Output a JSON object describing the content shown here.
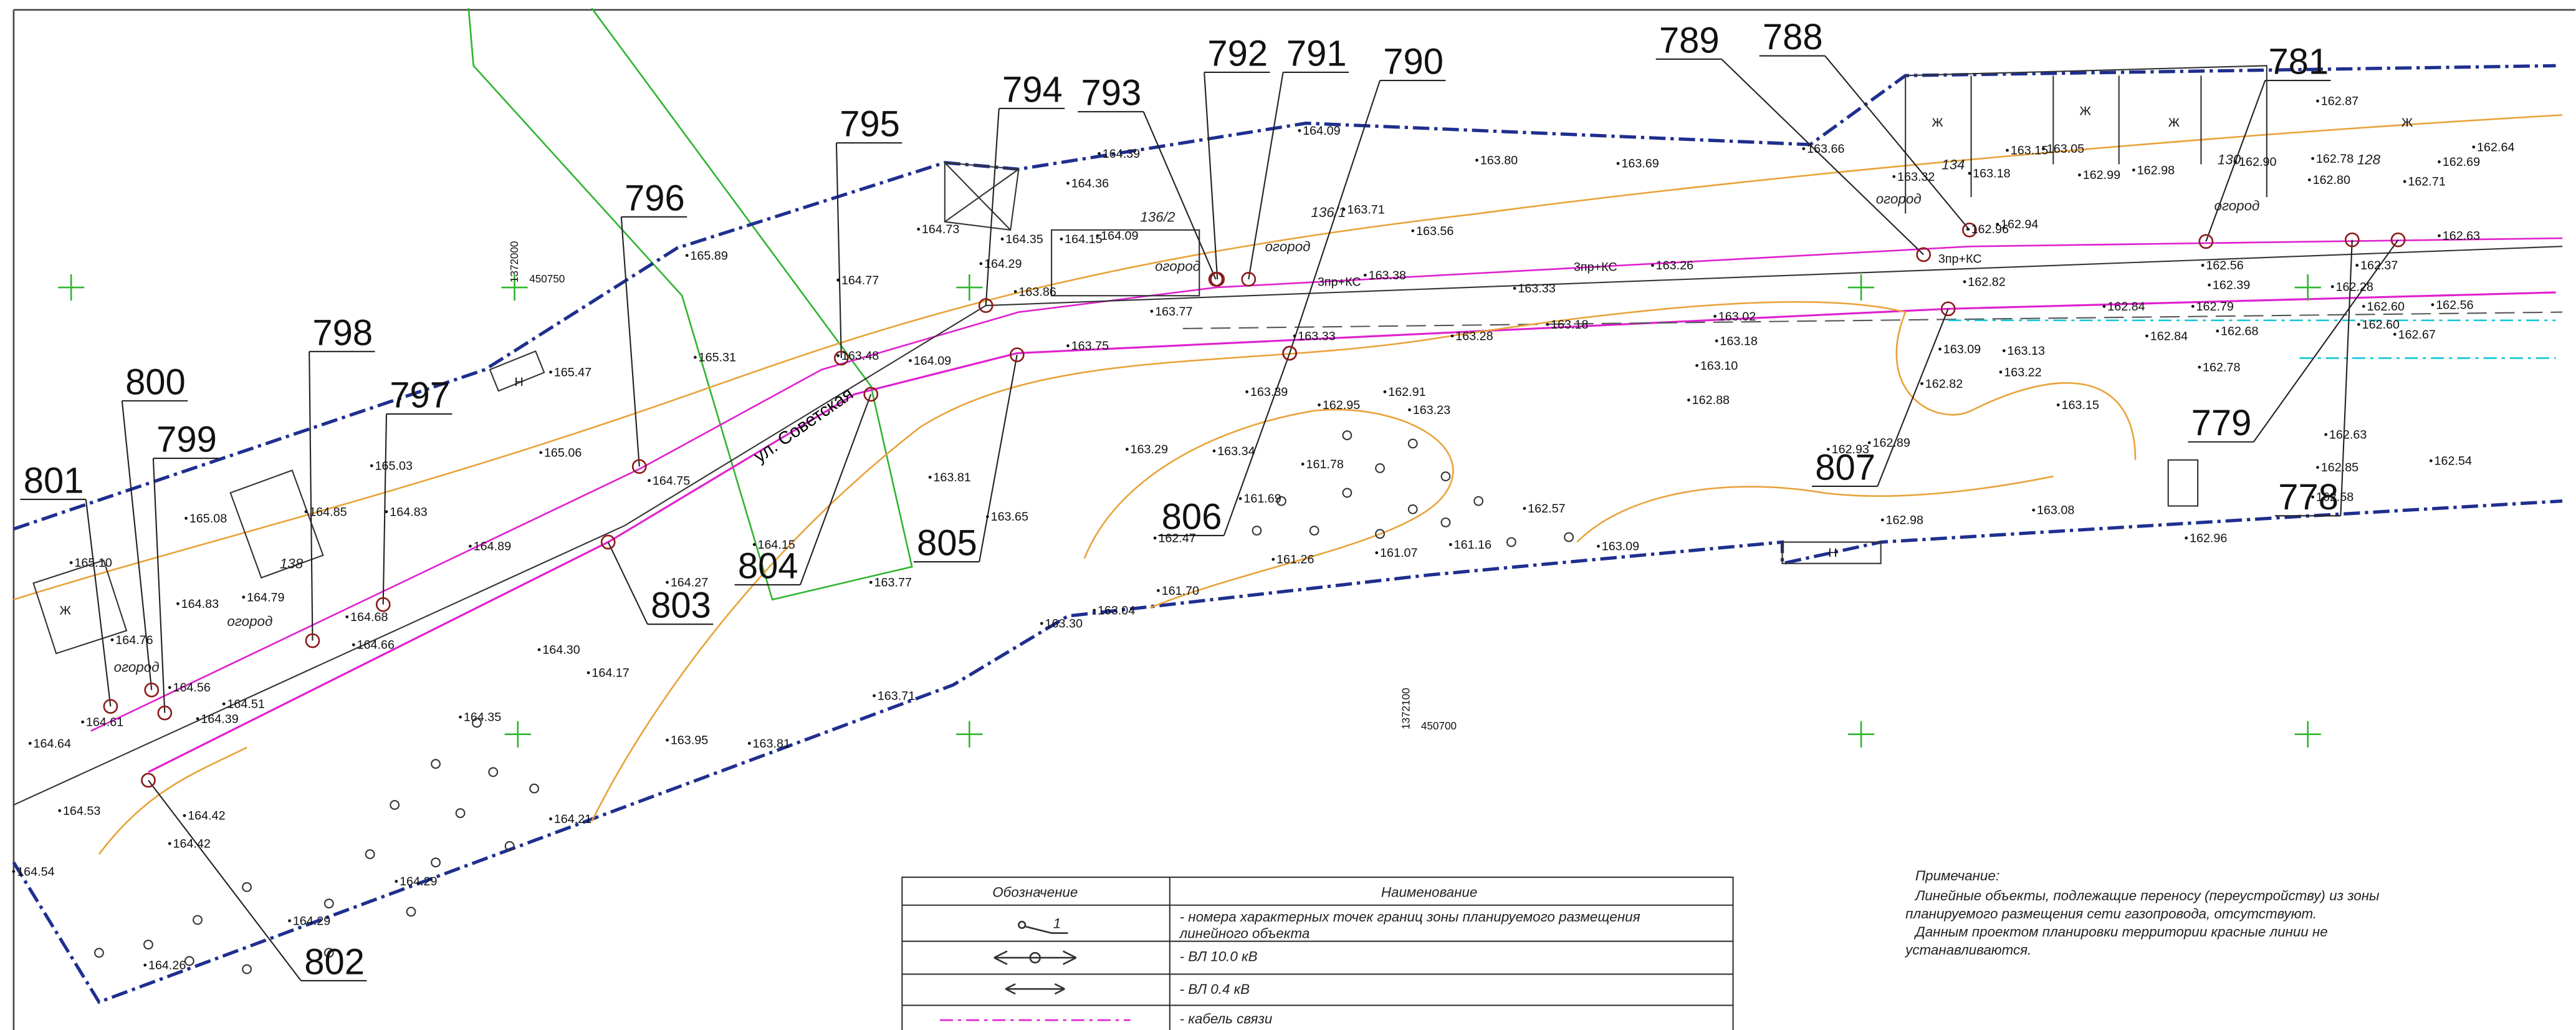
{
  "point_numbers": [
    "801",
    "800",
    "799",
    "798",
    "797",
    "796",
    "795",
    "794",
    "793",
    "792",
    "791",
    "790",
    "789",
    "788",
    "781",
    "779",
    "778",
    "807",
    "806",
    "805",
    "804",
    "803",
    "802"
  ],
  "elevations": [
    "165.10",
    "165.08",
    "164.83",
    "164.79",
    "164.85",
    "165.03",
    "164.83",
    "164.76",
    "164.66",
    "164.68",
    "164.56",
    "164.51",
    "164.39",
    "164.61",
    "164.64",
    "164.53",
    "164.42",
    "164.42",
    "164.54",
    "164.26",
    "164.29",
    "164.29",
    "164.35",
    "164.30",
    "164.17",
    "163.95",
    "163.81",
    "164.21",
    "163.71",
    "163.30",
    "163.04",
    "161.70",
    "161.26",
    "161.07",
    "161.16",
    "162.57",
    "163.09",
    "162.98",
    "162.96",
    "163.08",
    "162.54",
    "162.85",
    "162.63",
    "163.15",
    "162.89",
    "162.93",
    "163.10",
    "162.88",
    "163.29",
    "163.81",
    "163.65",
    "163.77",
    "164.15",
    "164.27",
    "164.75",
    "164.89",
    "165.06",
    "165.47",
    "165.31",
    "165.89",
    "164.77",
    "163.48",
    "164.09",
    "163.86",
    "163.75",
    "163.77",
    "164.29",
    "164.35",
    "164.73",
    "164.15",
    "164.09",
    "164.36",
    "164.39",
    "164.09",
    "163.71",
    "163.56",
    "163.38",
    "163.80",
    "163.69",
    "163.66",
    "163.33",
    "163.26",
    "163.18",
    "163.18",
    "163.02",
    "163.28",
    "163.33",
    "163.39",
    "162.95",
    "162.91",
    "163.23",
    "163.34",
    "161.78",
    "161.69",
    "162.47",
    "163.32",
    "163.18",
    "162.96",
    "162.94",
    "162.82",
    "163.09",
    "163.13",
    "163.22",
    "162.82",
    "162.84",
    "162.84",
    "162.68",
    "162.78",
    "162.99",
    "162.98",
    "162.90",
    "163.05",
    "163.15",
    "162.87",
    "162.78",
    "162.80",
    "162.69",
    "162.71",
    "162.63",
    "162.56",
    "162.39",
    "162.79",
    "162.37",
    "162.28",
    "162.60",
    "162.60",
    "162.56",
    "162.67",
    "162.64",
    "162.58"
  ],
  "labels": {
    "street": "ул. Советская",
    "garden": "огород",
    "residential": "Ж",
    "nonresidential": "Н",
    "coord_1": "450750",
    "coord_2": "450700",
    "coord_3": "1372000",
    "coord_4": "1372100",
    "house_1": "136/2",
    "house_2": "136/1",
    "house_3": "134",
    "house_4": "130",
    "house_5": "128",
    "house_6": "138",
    "line_code": "3пр+КС"
  },
  "legend": {
    "header": [
      "Обозначение",
      "Наименование"
    ],
    "symbol_label": "1",
    "rows": [
      [
        "- номера характерных точек границ зоны планируемого размещения",
        "линейного объекта"
      ],
      [
        "- ВЛ 10.0 кВ"
      ],
      [
        "- ВЛ 0.4 кВ"
      ],
      [
        "- кабель связи"
      ]
    ]
  },
  "note": {
    "title": "Примечание:",
    "lines": [
      "Линейные объекты, подлежащие переносу (переустройству) из зоны",
      "планируемого размещения сети газопровода, отсутствуют.",
      "Данным проектом планировки территории красные линии не",
      "устанавливаются."
    ]
  }
}
